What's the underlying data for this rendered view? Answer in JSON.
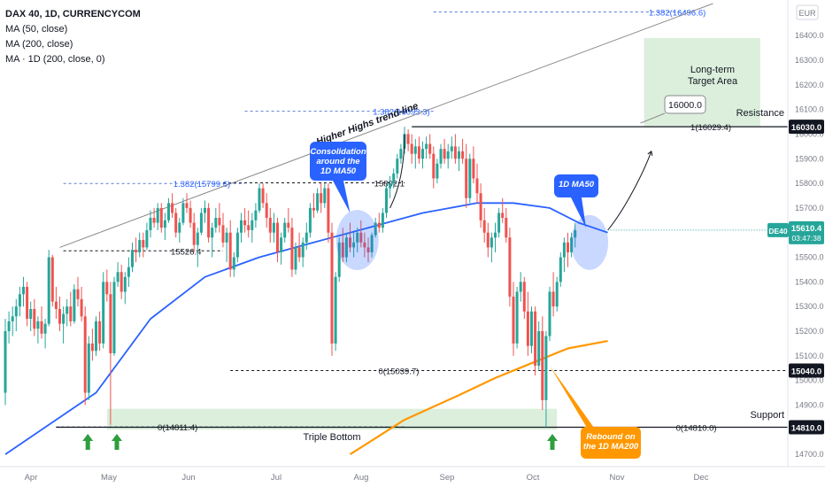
{
  "header": {
    "symbol": "DAX 40, 1D, CURRENCYCOM",
    "indicators": [
      "MA (50, close)",
      "MA (200, close)",
      "MA · 1D (200, close, 0)"
    ]
  },
  "axis": {
    "currency": "EUR",
    "price_ticks": [
      14700,
      14800,
      14900,
      15000,
      15100,
      15200,
      15300,
      15400,
      15500,
      15600,
      15700,
      15800,
      15900,
      16000,
      16100,
      16200,
      16300,
      16400,
      16500
    ],
    "price_tick_labels": [
      "14700.0",
      "14800.0",
      "14900.0",
      "15000.0",
      "15100.0",
      "15200.0",
      "15300.0",
      "15400.0",
      "15500.0",
      "15600.0",
      "15700.0",
      "15800.0",
      "15900.0",
      "16000.0",
      "16100.0",
      "16200.0",
      "16300.0",
      "16400.0",
      "16500.0"
    ],
    "months": [
      "Apr",
      "May",
      "Jun",
      "Jul",
      "Aug",
      "Sep",
      "Oct",
      "Nov",
      "Dec"
    ],
    "month_day_index": [
      0,
      30,
      61,
      91,
      122,
      153,
      183,
      214,
      244
    ]
  },
  "price_labels": {
    "resistance": "16030.0",
    "support_mid": "15040.0",
    "support_low": "14810.0",
    "current_symbol": "DE40",
    "current_price": "15610.4",
    "countdown": "03:47:38"
  },
  "colors": {
    "up": "#26a69a",
    "down": "#ef5350",
    "ma50": "#2962ff",
    "ma200": "#ff9800",
    "zone": "#c8e6c9",
    "callout": "#2962ff",
    "callout_orange": "#ff9800"
  },
  "annotations": {
    "resistance": "Resistance",
    "support": "Support",
    "target_area_line1": "Long-term",
    "target_area_line2": "Target Area",
    "target_box": "16000.0",
    "triple_bottom": "Triple Bottom",
    "trend_line": "Higher Highs trend-line",
    "consolidation": [
      "Consolidation",
      "around the",
      "1D MA50"
    ],
    "ma50_label": "1D MA50",
    "rebound": [
      "Rebound on",
      "the 1D MA200"
    ],
    "fib_top": "1.382(16496.6)",
    "fib_aug": "1.382(16093.3)",
    "fib_jun": "1.382(15799.6)",
    "fib_target": "1(16029.4)",
    "lvl_15526": "15526.4",
    "lvl_15802": "15802.1",
    "lvl_15039": "0(15039.7)",
    "lvl_14811": "0(14811.4)",
    "lvl_14810": "0(14810.0)"
  },
  "chart_data": {
    "type": "candlestick",
    "title": "DAX 40, 1D, CURRENCYCOM",
    "x_unit": "trading session index starting at the first visible day of April",
    "y_range": [
      14650,
      16530
    ],
    "candles": [
      [
        14950,
        15250,
        14900,
        15200
      ],
      [
        15200,
        15280,
        15150,
        15240
      ],
      [
        15240,
        15300,
        15180,
        15260
      ],
      [
        15260,
        15330,
        15200,
        15300
      ],
      [
        15300,
        15380,
        15260,
        15350
      ],
      [
        15350,
        15420,
        15300,
        15380
      ],
      [
        15380,
        15400,
        15220,
        15250
      ],
      [
        15250,
        15320,
        15200,
        15290
      ],
      [
        15290,
        15330,
        15180,
        15210
      ],
      [
        15210,
        15260,
        15150,
        15240
      ],
      [
        15240,
        15300,
        15170,
        15190
      ],
      [
        15190,
        15250,
        15130,
        15230
      ],
      [
        15230,
        15530,
        15220,
        15500
      ],
      [
        15500,
        15510,
        15300,
        15320
      ],
      [
        15320,
        15380,
        15250,
        15290
      ],
      [
        15290,
        15340,
        15200,
        15230
      ],
      [
        15230,
        15300,
        15150,
        15270
      ],
      [
        15270,
        15330,
        15220,
        15300
      ],
      [
        15300,
        15360,
        15220,
        15240
      ],
      [
        15240,
        15390,
        15230,
        15370
      ],
      [
        15370,
        15420,
        15300,
        15330
      ],
      [
        15330,
        15380,
        15240,
        15260
      ],
      [
        15260,
        15300,
        14900,
        14950
      ],
      [
        14950,
        15180,
        14920,
        15150
      ],
      [
        15150,
        15210,
        15080,
        15120
      ],
      [
        15120,
        15260,
        15100,
        15240
      ],
      [
        15240,
        15280,
        15120,
        15150
      ],
      [
        15150,
        15440,
        15130,
        15400
      ],
      [
        15400,
        15450,
        15320,
        15350
      ],
      [
        15350,
        15400,
        14820,
        15110
      ],
      [
        15110,
        15420,
        15100,
        15400
      ],
      [
        15400,
        15480,
        15380,
        15440
      ],
      [
        15440,
        15470,
        15330,
        15360
      ],
      [
        15360,
        15440,
        15310,
        15420
      ],
      [
        15420,
        15500,
        15380,
        15460
      ],
      [
        15460,
        15560,
        15440,
        15530
      ],
      [
        15530,
        15580,
        15480,
        15520
      ],
      [
        15520,
        15600,
        15500,
        15570
      ],
      [
        15570,
        15600,
        15500,
        15540
      ],
      [
        15540,
        15640,
        15530,
        15610
      ],
      [
        15610,
        15690,
        15580,
        15660
      ],
      [
        15660,
        15700,
        15620,
        15640
      ],
      [
        15640,
        15720,
        15610,
        15700
      ],
      [
        15700,
        15720,
        15600,
        15620
      ],
      [
        15620,
        15680,
        15570,
        15650
      ],
      [
        15650,
        15740,
        15640,
        15720
      ],
      [
        15720,
        15760,
        15660,
        15680
      ],
      [
        15680,
        15700,
        15580,
        15600
      ],
      [
        15600,
        15660,
        15560,
        15640
      ],
      [
        15640,
        15740,
        15630,
        15720
      ],
      [
        15720,
        15760,
        15680,
        15700
      ],
      [
        15700,
        15730,
        15620,
        15640
      ],
      [
        15640,
        15680,
        15520,
        15550
      ],
      [
        15550,
        15620,
        15460,
        15600
      ],
      [
        15600,
        15700,
        15590,
        15680
      ],
      [
        15680,
        15730,
        15640,
        15700
      ],
      [
        15700,
        15720,
        15560,
        15580
      ],
      [
        15580,
        15640,
        15500,
        15620
      ],
      [
        15620,
        15700,
        15600,
        15660
      ],
      [
        15660,
        15720,
        15600,
        15630
      ],
      [
        15630,
        15680,
        15540,
        15560
      ],
      [
        15560,
        15620,
        15480,
        15600
      ],
      [
        15600,
        15650,
        15420,
        15450
      ],
      [
        15450,
        15520,
        15420,
        15500
      ],
      [
        15500,
        15620,
        15480,
        15600
      ],
      [
        15600,
        15680,
        15560,
        15650
      ],
      [
        15650,
        15700,
        15600,
        15630
      ],
      [
        15630,
        15690,
        15580,
        15610
      ],
      [
        15610,
        15680,
        15560,
        15650
      ],
      [
        15650,
        15720,
        15620,
        15690
      ],
      [
        15690,
        15800,
        15680,
        15780
      ],
      [
        15780,
        15800,
        15700,
        15720
      ],
      [
        15720,
        15760,
        15620,
        15660
      ],
      [
        15660,
        15700,
        15560,
        15600
      ],
      [
        15600,
        15680,
        15560,
        15640
      ],
      [
        15640,
        15660,
        15480,
        15520
      ],
      [
        15520,
        15600,
        15470,
        15580
      ],
      [
        15580,
        15660,
        15560,
        15640
      ],
      [
        15640,
        15700,
        15600,
        15620
      ],
      [
        15620,
        15660,
        15420,
        15450
      ],
      [
        15450,
        15560,
        15430,
        15540
      ],
      [
        15540,
        15600,
        15480,
        15500
      ],
      [
        15500,
        15580,
        15460,
        15560
      ],
      [
        15560,
        15640,
        15530,
        15600
      ],
      [
        15600,
        15720,
        15580,
        15700
      ],
      [
        15700,
        15760,
        15660,
        15690
      ],
      [
        15690,
        15780,
        15680,
        15760
      ],
      [
        15760,
        15800,
        15680,
        15720
      ],
      [
        15720,
        15800,
        15700,
        15780
      ],
      [
        15780,
        15800,
        15560,
        15600
      ],
      [
        15600,
        15640,
        15100,
        15150
      ],
      [
        15150,
        15440,
        15120,
        15420
      ],
      [
        15420,
        15580,
        15400,
        15560
      ],
      [
        15560,
        15620,
        15480,
        15500
      ],
      [
        15500,
        15600,
        15480,
        15580
      ],
      [
        15580,
        15640,
        15520,
        15540
      ],
      [
        15540,
        15600,
        15500,
        15560
      ],
      [
        15560,
        15620,
        15520,
        15600
      ],
      [
        15600,
        15650,
        15540,
        15560
      ],
      [
        15560,
        15600,
        15500,
        15540
      ],
      [
        15540,
        15580,
        15480,
        15520
      ],
      [
        15520,
        15600,
        15500,
        15590
      ],
      [
        15590,
        15660,
        15580,
        15640
      ],
      [
        15640,
        15680,
        15600,
        15620
      ],
      [
        15620,
        15700,
        15600,
        15680
      ],
      [
        15680,
        15800,
        15660,
        15780
      ],
      [
        15780,
        15830,
        15740,
        15800
      ],
      [
        15800,
        15860,
        15780,
        15840
      ],
      [
        15840,
        15920,
        15820,
        15900
      ],
      [
        15900,
        15960,
        15880,
        15940
      ],
      [
        15940,
        16030,
        15920,
        16000
      ],
      [
        16000,
        16020,
        15930,
        15960
      ],
      [
        15960,
        16000,
        15880,
        15920
      ],
      [
        15920,
        15980,
        15860,
        15950
      ],
      [
        15950,
        15990,
        15880,
        15900
      ],
      [
        15900,
        15970,
        15860,
        15940
      ],
      [
        15940,
        15990,
        15900,
        15960
      ],
      [
        15960,
        16000,
        15900,
        15920
      ],
      [
        15920,
        15950,
        15780,
        15820
      ],
      [
        15820,
        15900,
        15800,
        15880
      ],
      [
        15880,
        15960,
        15860,
        15940
      ],
      [
        15940,
        15980,
        15880,
        15900
      ],
      [
        15900,
        15960,
        15860,
        15930
      ],
      [
        15930,
        15990,
        15900,
        15950
      ],
      [
        15950,
        16000,
        15880,
        15900
      ],
      [
        15900,
        15950,
        15850,
        15930
      ],
      [
        15930,
        15980,
        15880,
        15900
      ],
      [
        15900,
        15960,
        15700,
        15740
      ],
      [
        15740,
        15920,
        15720,
        15900
      ],
      [
        15900,
        15950,
        15800,
        15820
      ],
      [
        15820,
        15880,
        15720,
        15760
      ],
      [
        15760,
        15800,
        15620,
        15650
      ],
      [
        15650,
        15700,
        15560,
        15600
      ],
      [
        15600,
        15640,
        15500,
        15540
      ],
      [
        15540,
        15600,
        15480,
        15580
      ],
      [
        15580,
        15640,
        15520,
        15600
      ],
      [
        15600,
        15700,
        15580,
        15680
      ],
      [
        15680,
        15740,
        15640,
        15660
      ],
      [
        15660,
        15700,
        15560,
        15580
      ],
      [
        15580,
        15620,
        15300,
        15340
      ],
      [
        15340,
        15400,
        15100,
        15150
      ],
      [
        15150,
        15380,
        15130,
        15360
      ],
      [
        15360,
        15440,
        15320,
        15400
      ],
      [
        15400,
        15420,
        15250,
        15280
      ],
      [
        15280,
        15360,
        15100,
        15140
      ],
      [
        15140,
        15300,
        15110,
        15280
      ],
      [
        15280,
        15300,
        15020,
        15060
      ],
      [
        15060,
        15240,
        15040,
        15200
      ],
      [
        15200,
        15260,
        14880,
        14920
      ],
      [
        14920,
        15200,
        14810,
        15180
      ],
      [
        15180,
        15380,
        15160,
        15360
      ],
      [
        15360,
        15440,
        15260,
        15300
      ],
      [
        15300,
        15420,
        15280,
        15400
      ],
      [
        15400,
        15520,
        15380,
        15500
      ],
      [
        15500,
        15580,
        15440,
        15560
      ],
      [
        15560,
        15600,
        15460,
        15520
      ],
      [
        15520,
        15600,
        15500,
        15580
      ],
      [
        15580,
        15640,
        15540,
        15610
      ]
    ],
    "ma50": [
      [
        0,
        14700
      ],
      [
        25,
        14950
      ],
      [
        40,
        15250
      ],
      [
        55,
        15420
      ],
      [
        70,
        15500
      ],
      [
        85,
        15560
      ],
      [
        100,
        15620
      ],
      [
        115,
        15680
      ],
      [
        130,
        15720
      ],
      [
        140,
        15720
      ],
      [
        150,
        15700
      ],
      [
        158,
        15640
      ],
      [
        166,
        15600
      ]
    ],
    "ma200": [
      [
        95,
        14700
      ],
      [
        110,
        14840
      ],
      [
        125,
        14940
      ],
      [
        135,
        15010
      ],
      [
        145,
        15070
      ],
      [
        155,
        15130
      ],
      [
        166,
        15160
      ]
    ],
    "projection": [
      [
        166,
        15610
      ],
      [
        171,
        15700
      ],
      [
        176,
        15850
      ],
      [
        178,
        15930
      ]
    ]
  }
}
